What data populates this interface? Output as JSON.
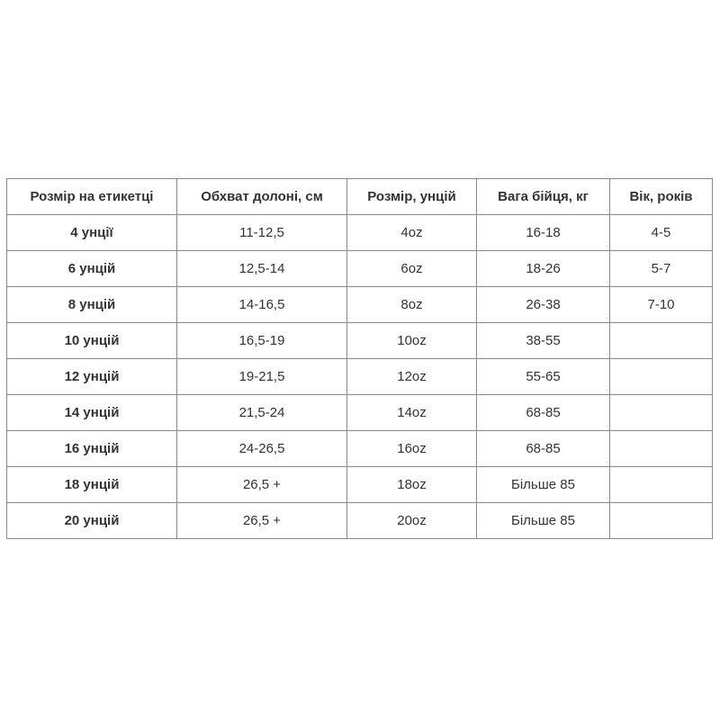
{
  "table": {
    "headers": [
      "Розмір на етикетці",
      "Обхват долоні, см",
      "Розмір, унцій",
      "Вага бійця, кг",
      "Вік, років"
    ],
    "rows": [
      [
        "4 унції",
        "11-12,5",
        "4oz",
        "16-18",
        "4-5"
      ],
      [
        "6 унцій",
        "12,5-14",
        "6oz",
        "18-26",
        "5-7"
      ],
      [
        "8 унцій",
        "14-16,5",
        "8oz",
        "26-38",
        "7-10"
      ],
      [
        "10 унцій",
        "16,5-19",
        "10oz",
        "38-55",
        ""
      ],
      [
        "12 унцій",
        "19-21,5",
        "12oz",
        "55-65",
        ""
      ],
      [
        "14 унцій",
        "21,5-24",
        "14oz",
        "68-85",
        ""
      ],
      [
        "16 унцій",
        "24-26,5",
        "16oz",
        "68-85",
        ""
      ],
      [
        "18 унцій",
        "26,5 +",
        "18oz",
        "Більше 85",
        ""
      ],
      [
        "20 унцій",
        "26,5 +",
        "20oz",
        "Більше 85",
        ""
      ]
    ]
  }
}
